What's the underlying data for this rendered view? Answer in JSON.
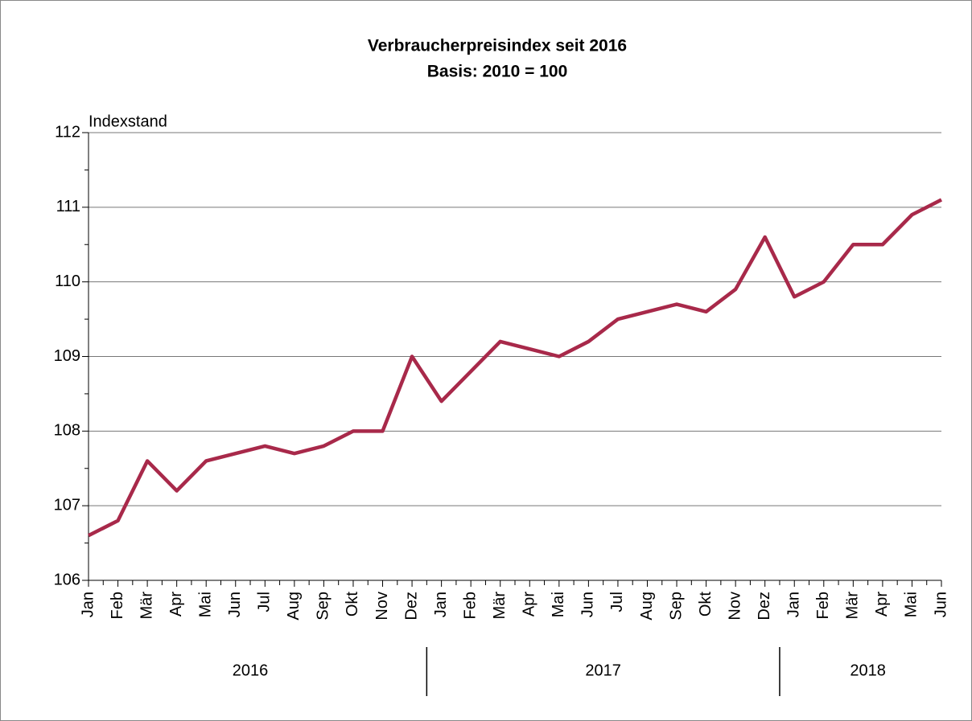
{
  "chart_data": {
    "type": "line",
    "title": "Verbraucherpreisindex seit 2016",
    "subtitle": "Basis: 2010 = 100",
    "y_label": "Indexstand",
    "categories": [
      "Jan",
      "Feb",
      "Mär",
      "Apr",
      "Mai",
      "Jun",
      "Jul",
      "Aug",
      "Sep",
      "Okt",
      "Nov",
      "Dez",
      "Jan",
      "Feb",
      "Mär",
      "Apr",
      "Mai",
      "Jun",
      "Jul",
      "Aug",
      "Sep",
      "Okt",
      "Nov",
      "Dez",
      "Jan",
      "Feb",
      "Mär",
      "Apr",
      "Mai",
      "Jun"
    ],
    "year_groups": [
      {
        "label": "2016",
        "months": 12
      },
      {
        "label": "2017",
        "months": 12
      },
      {
        "label": "2018",
        "months": 6
      }
    ],
    "series": [
      {
        "name": "Verbraucherpreisindex",
        "color": "#a8294a",
        "values": [
          106.6,
          106.8,
          107.6,
          107.2,
          107.6,
          107.7,
          107.8,
          107.7,
          107.8,
          108.0,
          108.0,
          109.0,
          108.4,
          108.8,
          109.2,
          109.1,
          109.0,
          109.2,
          109.5,
          109.6,
          109.7,
          109.6,
          109.9,
          110.6,
          109.8,
          110.0,
          110.5,
          110.5,
          110.9,
          111.1
        ]
      }
    ],
    "ylim": [
      106,
      112
    ],
    "yticks": [
      106,
      107,
      108,
      109,
      110,
      111,
      112
    ],
    "grid": true
  }
}
